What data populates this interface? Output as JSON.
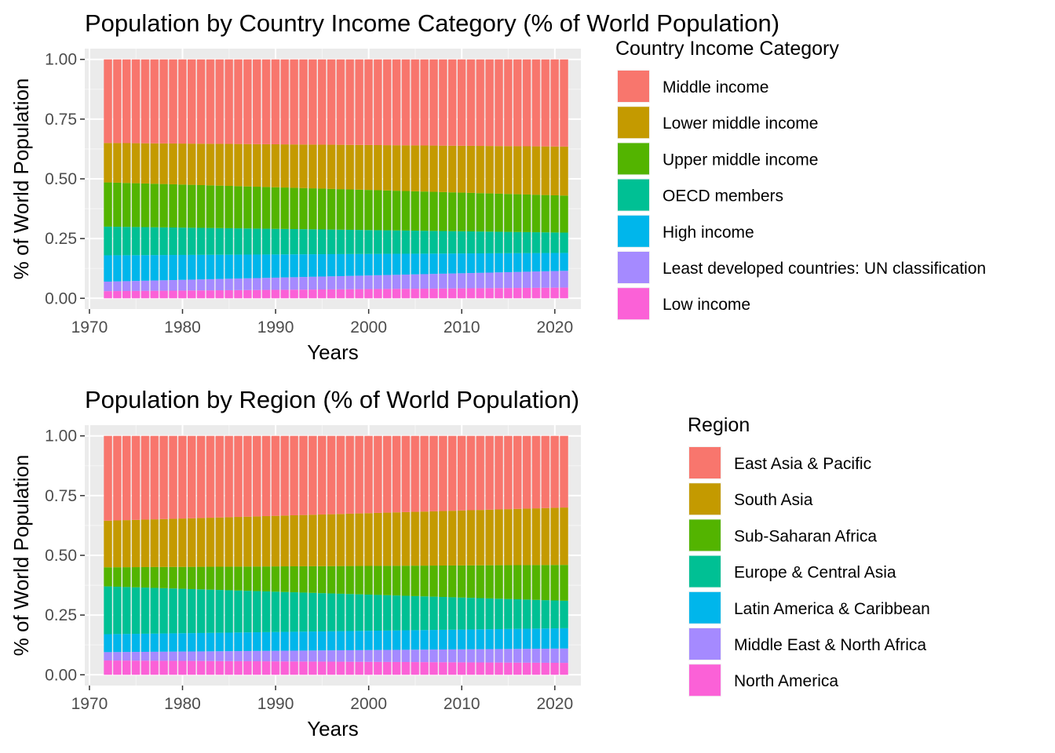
{
  "chart_data": [
    {
      "type": "bar",
      "stacked": true,
      "title": "Population by Country Income Category (% of World Population)",
      "xlabel": "Years",
      "ylabel": "% of World Population",
      "xlim": [
        1970,
        2021
      ],
      "x_ticks": [
        1970,
        1980,
        1990,
        2000,
        2010,
        2020
      ],
      "ylim": [
        0,
        1
      ],
      "y_ticks": [
        "0.00",
        "0.25",
        "0.50",
        "0.75",
        "1.00"
      ],
      "grid": true,
      "legend_title": "Country Income Category",
      "legend_position": "right",
      "years": [
        1972,
        2021
      ],
      "series": [
        {
          "name": "Middle income",
          "color": "#F8766D",
          "start": 0.35,
          "end": 0.365
        },
        {
          "name": "Lower middle income",
          "color": "#C49A00",
          "start": 0.165,
          "end": 0.205
        },
        {
          "name": "Upper middle income",
          "color": "#53B400",
          "start": 0.185,
          "end": 0.155
        },
        {
          "name": "OECD members",
          "color": "#00C094",
          "start": 0.12,
          "end": 0.085
        },
        {
          "name": "High income",
          "color": "#00B6EB",
          "start": 0.11,
          "end": 0.075
        },
        {
          "name": "Least developed countries: UN classification",
          "color": "#A58AFF",
          "start": 0.04,
          "end": 0.07
        },
        {
          "name": "Low income",
          "color": "#FB61D7",
          "start": 0.03,
          "end": 0.045
        }
      ]
    },
    {
      "type": "bar",
      "stacked": true,
      "title": "Population by Region (% of World Population)",
      "xlabel": "Years",
      "ylabel": "% of World Population",
      "xlim": [
        1970,
        2021
      ],
      "x_ticks": [
        1970,
        1980,
        1990,
        2000,
        2010,
        2020
      ],
      "ylim": [
        0,
        1
      ],
      "y_ticks": [
        "0.00",
        "0.25",
        "0.50",
        "0.75",
        "1.00"
      ],
      "grid": true,
      "legend_title": "Region",
      "legend_position": "right",
      "years": [
        1972,
        2021
      ],
      "series": [
        {
          "name": "East Asia & Pacific",
          "color": "#F8766D",
          "start": 0.355,
          "end": 0.3
        },
        {
          "name": "South Asia",
          "color": "#C49A00",
          "start": 0.195,
          "end": 0.24
        },
        {
          "name": "Sub-Saharan Africa",
          "color": "#53B400",
          "start": 0.08,
          "end": 0.15
        },
        {
          "name": "Europe & Central Asia",
          "color": "#00C094",
          "start": 0.2,
          "end": 0.115
        },
        {
          "name": "Latin America & Caribbean",
          "color": "#00B6EB",
          "start": 0.075,
          "end": 0.085
        },
        {
          "name": "Middle East & North Africa",
          "color": "#A58AFF",
          "start": 0.035,
          "end": 0.06
        },
        {
          "name": "North America",
          "color": "#FB61D7",
          "start": 0.06,
          "end": 0.05
        }
      ]
    }
  ]
}
